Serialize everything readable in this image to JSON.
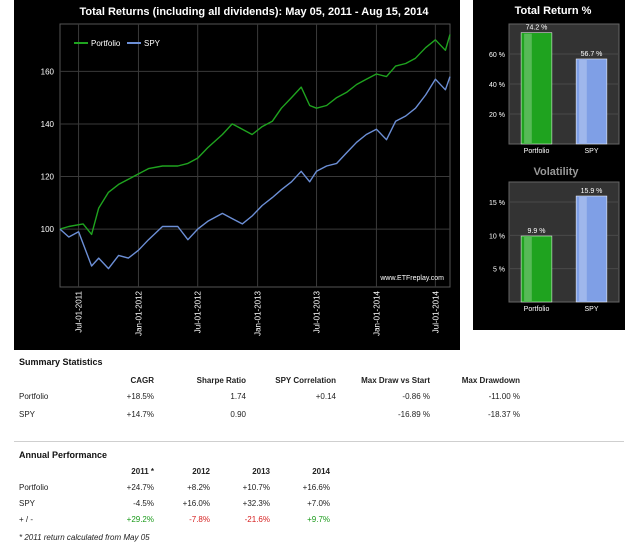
{
  "main_chart": {
    "title": "Total Returns (including all dividends): May 05, 2011 - Aug 15, 2014",
    "watermark": "www.ETFreplay.com",
    "legend": [
      {
        "name": "Portfolio",
        "color": "#1fa31f"
      },
      {
        "name": "SPY",
        "color": "#6c8fd6"
      }
    ]
  },
  "side_panels": {
    "total_return": {
      "title": "Total Return %"
    },
    "volatility": {
      "title": "Volatility"
    }
  },
  "chart_data": [
    {
      "type": "line",
      "title": "Total Returns (including all dividends): May 05, 2011 - Aug 15, 2014",
      "x_tick_labels": [
        "Jul-01-2011",
        "Jan-01-2012",
        "Jul-01-2012",
        "Jan-01-2013",
        "Jul-01-2013",
        "Jan-01-2014",
        "Jul-01-2014"
      ],
      "x_ticks": [
        "2011-07-01",
        "2012-01-01",
        "2012-07-01",
        "2013-01-01",
        "2013-07-01",
        "2014-01-01",
        "2014-07-01"
      ],
      "xlim": [
        "2011-05-05",
        "2014-08-15"
      ],
      "y_ticks": [
        100,
        120,
        140,
        160
      ],
      "ylim": [
        78,
        178
      ],
      "grid": true,
      "legend": "top-left",
      "series": [
        {
          "name": "Portfolio",
          "color": "#1fa31f",
          "points": [
            [
              "2011-05-05",
              100
            ],
            [
              "2011-06-01",
              101
            ],
            [
              "2011-07-15",
              102
            ],
            [
              "2011-08-10",
              98
            ],
            [
              "2011-09-01",
              108
            ],
            [
              "2011-10-01",
              114
            ],
            [
              "2011-11-01",
              117
            ],
            [
              "2011-12-01",
              119
            ],
            [
              "2012-01-01",
              121
            ],
            [
              "2012-02-01",
              123
            ],
            [
              "2012-03-15",
              124
            ],
            [
              "2012-05-01",
              124
            ],
            [
              "2012-06-01",
              125
            ],
            [
              "2012-07-01",
              127
            ],
            [
              "2012-08-01",
              131
            ],
            [
              "2012-09-15",
              136
            ],
            [
              "2012-10-15",
              140
            ],
            [
              "2012-11-15",
              138
            ],
            [
              "2012-12-15",
              136
            ],
            [
              "2013-01-15",
              139
            ],
            [
              "2013-02-15",
              141
            ],
            [
              "2013-03-15",
              146
            ],
            [
              "2013-04-15",
              150
            ],
            [
              "2013-05-15",
              154
            ],
            [
              "2013-06-10",
              147
            ],
            [
              "2013-07-01",
              146
            ],
            [
              "2013-08-01",
              147
            ],
            [
              "2013-09-01",
              150
            ],
            [
              "2013-10-01",
              152
            ],
            [
              "2013-11-01",
              155
            ],
            [
              "2013-12-01",
              157
            ],
            [
              "2014-01-01",
              159
            ],
            [
              "2014-02-01",
              158
            ],
            [
              "2014-03-01",
              162
            ],
            [
              "2014-04-01",
              163
            ],
            [
              "2014-05-01",
              165
            ],
            [
              "2014-06-01",
              169
            ],
            [
              "2014-07-01",
              172
            ],
            [
              "2014-08-01",
              168
            ],
            [
              "2014-08-15",
              174
            ]
          ]
        },
        {
          "name": "SPY",
          "color": "#6c8fd6",
          "points": [
            [
              "2011-05-05",
              100
            ],
            [
              "2011-06-01",
              97
            ],
            [
              "2011-07-01",
              99
            ],
            [
              "2011-08-10",
              86
            ],
            [
              "2011-09-01",
              89
            ],
            [
              "2011-10-01",
              85
            ],
            [
              "2011-11-01",
              90
            ],
            [
              "2011-12-01",
              89
            ],
            [
              "2012-01-01",
              92
            ],
            [
              "2012-02-01",
              96
            ],
            [
              "2012-03-15",
              101
            ],
            [
              "2012-05-01",
              101
            ],
            [
              "2012-06-01",
              96
            ],
            [
              "2012-07-01",
              100
            ],
            [
              "2012-08-01",
              103
            ],
            [
              "2012-09-15",
              106
            ],
            [
              "2012-10-15",
              104
            ],
            [
              "2012-11-15",
              102
            ],
            [
              "2012-12-15",
              105
            ],
            [
              "2013-01-15",
              109
            ],
            [
              "2013-02-15",
              112
            ],
            [
              "2013-03-15",
              115
            ],
            [
              "2013-04-15",
              118
            ],
            [
              "2013-05-15",
              122
            ],
            [
              "2013-06-10",
              118
            ],
            [
              "2013-07-01",
              122
            ],
            [
              "2013-08-01",
              124
            ],
            [
              "2013-09-01",
              125
            ],
            [
              "2013-10-01",
              129
            ],
            [
              "2013-11-01",
              133
            ],
            [
              "2013-12-01",
              136
            ],
            [
              "2014-01-01",
              138
            ],
            [
              "2014-02-01",
              134
            ],
            [
              "2014-03-01",
              141
            ],
            [
              "2014-04-01",
              143
            ],
            [
              "2014-05-01",
              146
            ],
            [
              "2014-06-01",
              151
            ],
            [
              "2014-07-01",
              157
            ],
            [
              "2014-08-01",
              153
            ],
            [
              "2014-08-15",
              158
            ]
          ]
        }
      ]
    },
    {
      "type": "bar",
      "title": "Total Return %",
      "categories": [
        "Portfolio",
        "SPY"
      ],
      "values": [
        74.2,
        56.7
      ],
      "value_labels": [
        "74.2 %",
        "56.7 %"
      ],
      "colors": [
        "#1fa31f",
        "#7f9fe6"
      ],
      "y_ticks": [
        20,
        40,
        60
      ],
      "y_tick_labels": [
        "20 %",
        "40 %",
        "60 %"
      ],
      "ylim": [
        0,
        80
      ]
    },
    {
      "type": "bar",
      "title": "Volatility",
      "categories": [
        "Portfolio",
        "SPY"
      ],
      "values": [
        9.9,
        15.9
      ],
      "value_labels": [
        "9.9 %",
        "15.9 %"
      ],
      "colors": [
        "#1fa31f",
        "#7f9fe6"
      ],
      "y_ticks": [
        5,
        10,
        15
      ],
      "y_tick_labels": [
        "5 %",
        "10 %",
        "15 %"
      ],
      "ylim": [
        0,
        18
      ]
    }
  ],
  "summary": {
    "title": "Summary Statistics",
    "headers": [
      "CAGR",
      "Sharpe Ratio",
      "SPY Correlation",
      "Max Draw vs Start",
      "Max Drawdown"
    ],
    "rows": [
      {
        "label": "Portfolio",
        "cagr": "+18.5%",
        "sharpe": "1.74",
        "corr": "+0.14",
        "mdvs": "-0.86 %",
        "mdd": "-11.00 %"
      },
      {
        "label": "SPY",
        "cagr": "+14.7%",
        "sharpe": "0.90",
        "corr": "",
        "mdvs": "-16.89 %",
        "mdd": "-18.37 %"
      }
    ]
  },
  "annual": {
    "title": "Annual Performance",
    "headers": [
      "2011 *",
      "2012",
      "2013",
      "2014"
    ],
    "rows": [
      {
        "label": "Portfolio",
        "values": [
          "+24.7%",
          "+8.2%",
          "+10.7%",
          "+16.6%"
        ]
      },
      {
        "label": "SPY",
        "values": [
          "-4.5%",
          "+16.0%",
          "+32.3%",
          "+7.0%"
        ]
      },
      {
        "label": "+ / -",
        "values": [
          "+29.2%",
          "-7.8%",
          "-21.6%",
          "+9.7%"
        ]
      }
    ],
    "footnote": "* 2011 return calculated from May 05"
  }
}
